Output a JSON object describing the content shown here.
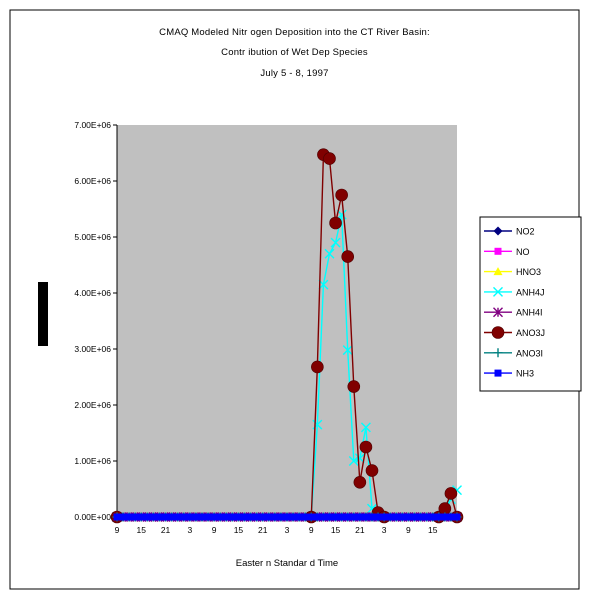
{
  "chart_data": {
    "type": "line",
    "title": [
      "CMAQ Modeled Nitr ogen Deposition into the CT River Basin:",
      "Contr ibution of  Wet Dep Species",
      "July 5 - 8, 1997"
    ],
    "xlabel": "Easter n Standar d Time",
    "ylabel": "",
    "ylim": [
      0,
      7000000
    ],
    "yticks": [
      "0.00E+00",
      "1.00E+06",
      "2.00E+06",
      "3.00E+06",
      "4.00E+06",
      "5.00E+06",
      "6.00E+06",
      "7.00E+06"
    ],
    "x_tick_labels": [
      "9",
      "15",
      "21",
      "3",
      "9",
      "15",
      "21",
      "3",
      "9",
      "15",
      "21",
      "3",
      "9",
      "15"
    ],
    "x_range": [
      0,
      56
    ],
    "grid": false,
    "legend_position": "right",
    "plot_background": "#c0c0c0",
    "series": [
      {
        "name": "NO2",
        "color": "#000080",
        "marker": "diamond",
        "x": [
          0,
          56
        ],
        "values": [
          0,
          0
        ]
      },
      {
        "name": "NO",
        "color": "#ff00ff",
        "marker": "square",
        "x": [
          0,
          56
        ],
        "values": [
          0,
          0
        ]
      },
      {
        "name": "HNO3",
        "color": "#ffff00",
        "marker": "triangle",
        "x": [
          0,
          56
        ],
        "values": [
          0,
          0
        ]
      },
      {
        "name": "ANH4J",
        "color": "#00ffff",
        "marker": "x",
        "x": [
          0,
          32,
          33,
          34,
          35,
          36,
          37,
          38,
          39,
          40,
          41,
          42,
          43,
          44,
          53,
          54,
          55,
          56
        ],
        "values": [
          0,
          0,
          1650000,
          4150000,
          4700000,
          4900000,
          5400000,
          2980000,
          1000000,
          1050000,
          1600000,
          150000,
          0,
          0,
          0,
          100000,
          320000,
          480000
        ]
      },
      {
        "name": "ANH4I",
        "color": "#800080",
        "marker": "star",
        "x": [
          0,
          56
        ],
        "values": [
          0,
          0
        ]
      },
      {
        "name": "ANO3J",
        "color": "#800000",
        "marker": "circle",
        "x": [
          0,
          32,
          33,
          34,
          35,
          36,
          37,
          38,
          39,
          40,
          41,
          42,
          43,
          44,
          53,
          54,
          55,
          56
        ],
        "values": [
          0,
          0,
          2680000,
          6470000,
          6400000,
          5250000,
          5750000,
          4650000,
          2330000,
          620000,
          1250000,
          830000,
          80000,
          0,
          0,
          150000,
          420000,
          0
        ]
      },
      {
        "name": "ANO3I",
        "color": "#008080",
        "marker": "plus",
        "x": [
          0,
          56
        ],
        "values": [
          0,
          0
        ]
      },
      {
        "name": "NH3",
        "color": "#0000ff",
        "marker": "square",
        "x": [
          0,
          56
        ],
        "values": [
          0,
          0
        ]
      }
    ]
  }
}
